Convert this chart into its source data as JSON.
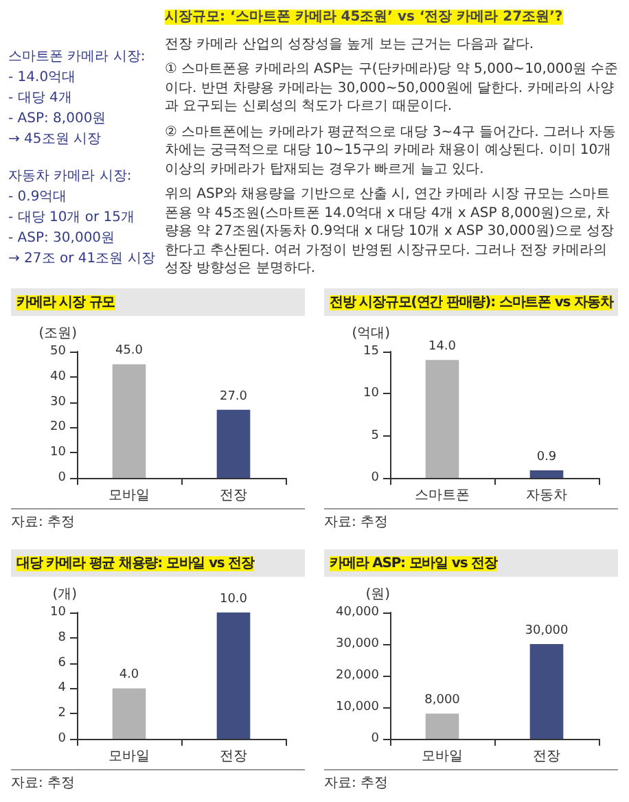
{
  "chart_data": [
    {
      "type": "other",
      "annotations": [
        "스마트폰 카메라 시장:",
        "- 14.0억대",
        "- 대당 4개",
        "- ASP: 8,000원",
        "→ 45조원 시장",
        "자동차 카메라 시장:",
        "- 0.9억대",
        "- 대당 10개 or 15개",
        "- ASP: 30,000원",
        "→ 27조 or 41조원 시장"
      ]
    },
    {
      "type": "other",
      "title": "시장규모: ‘스마트폰 카메라 45조원’ vs ‘전장 카메라 27조원’?",
      "annotations": [
        "전장 카메라 산업의 성장성을 높게 보는 근거는 다음과 같다.",
        "① 스마트폰용 카메라의 ASP는 구(단카메라)당 약 5,000~10,000원 수준이다. 반면 차량용 카메라는 30,000~50,000원에 달한다. 카메라의 사양과 요구되는 신뢰성의 척도가 다르기 때문이다.",
        "② 스마트폰에는 카메라가 평균적으로 대당 3~4구 들어간다. 그러나 자동차에는 궁극적으로 대당 10~15구의 카메라 채용이 예상된다. 이미 10개 이상의 카메라가 탑재되는 경우가 빠르게 늘고 있다.",
        "위의 ASP와 채용량을 기반으로 산출 시, 연간 카메라 시장 규모는 스마트폰용 약 45조원(스마트폰 14.0억대 x 대당 4개 x ASP 8,000원)으로, 차량용 약 27조원(자동차 0.9억대 x 대당 10개 x ASP 30,000원)으로 성장한다고 추산된다. 여러 가정이 반영된 시장규모다. 그러나 전장 카메라의 성장 방향성은 분명하다."
      ]
    },
    {
      "type": "bar",
      "title": "카메라 시장 규모",
      "ylabel": "(조원)",
      "categories": [
        "모바일",
        "전장"
      ],
      "values": [
        45.0,
        27.0
      ],
      "colors": [
        "#b3b3b3",
        "#404e82"
      ],
      "value_labels": [
        "45.0",
        "27.0"
      ],
      "ylim": [
        0,
        50
      ],
      "yticks": [
        0,
        10,
        20,
        30,
        40,
        50
      ],
      "annotations": [
        "자료: 추정"
      ]
    },
    {
      "type": "bar",
      "title": "전방 시장규모(연간 판매량): 스마트폰 vs 자동차",
      "ylabel": "(억대)",
      "categories": [
        "스마트폰",
        "자동차"
      ],
      "values": [
        14.0,
        0.9
      ],
      "colors": [
        "#b3b3b3",
        "#404e82"
      ],
      "value_labels": [
        "14.0",
        "0.9"
      ],
      "ylim": [
        0,
        15
      ],
      "yticks": [
        0,
        5,
        10,
        15
      ],
      "annotations": [
        "자료: 추정"
      ]
    },
    {
      "type": "bar",
      "title": "대당 카메라 평균 채용량: 모바일 vs 전장",
      "ylabel": "(개)",
      "categories": [
        "모바일",
        "전장"
      ],
      "values": [
        4.0,
        10.0
      ],
      "colors": [
        "#b3b3b3",
        "#404e82"
      ],
      "value_labels": [
        "4.0",
        "10.0"
      ],
      "ylim": [
        0,
        10
      ],
      "yticks": [
        0,
        2,
        4,
        6,
        8,
        10
      ],
      "annotations": [
        "자료: 추정"
      ]
    },
    {
      "type": "bar",
      "title": "카메라 ASP: 모바일 vs 전장",
      "ylabel": "(원)",
      "categories": [
        "모바일",
        "전장"
      ],
      "values": [
        8000,
        30000
      ],
      "colors": [
        "#b3b3b3",
        "#404e82"
      ],
      "value_labels": [
        "8,000",
        "30,000"
      ],
      "ylim": [
        0,
        40000
      ],
      "yticks": [
        0,
        {
          "value": 10000,
          "label": "10,000"
        },
        {
          "value": 20000,
          "label": "20,000"
        },
        {
          "value": 30000,
          "label": "30,000"
        },
        {
          "value": 40000,
          "label": "40,000"
        }
      ],
      "annotations": [
        "자료: 추정"
      ]
    }
  ]
}
